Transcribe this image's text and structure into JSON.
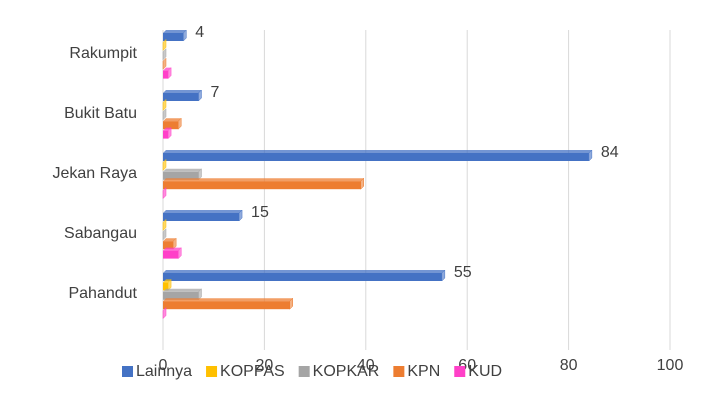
{
  "chart_data": {
    "type": "bar",
    "orientation": "horizontal",
    "categories": [
      "Rakumpit",
      "Bukit Batu",
      "Jekan Raya",
      "Sabangau",
      "Pahandut"
    ],
    "series": [
      {
        "name": "Lainnya",
        "color": "#4472c4",
        "values": [
          4,
          7,
          84,
          15,
          55
        ],
        "show_labels": true
      },
      {
        "name": "KOPPAS",
        "color": "#ffc000",
        "values": [
          0,
          0,
          0,
          0,
          1
        ],
        "show_labels": false
      },
      {
        "name": "KOPKAR",
        "color": "#a5a5a5",
        "values": [
          0,
          0,
          7,
          0,
          7
        ],
        "show_labels": false
      },
      {
        "name": "KPN",
        "color": "#ed7d31",
        "values": [
          0,
          3,
          39,
          2,
          25
        ],
        "show_labels": false
      },
      {
        "name": "KUD",
        "color": "#ff40c8",
        "values": [
          1,
          1,
          0,
          3,
          0
        ],
        "show_labels": false
      }
    ],
    "xlim": [
      0,
      100
    ],
    "xticks": [
      0,
      20,
      40,
      60,
      80,
      100
    ],
    "grid": true,
    "legend": "bottom"
  }
}
